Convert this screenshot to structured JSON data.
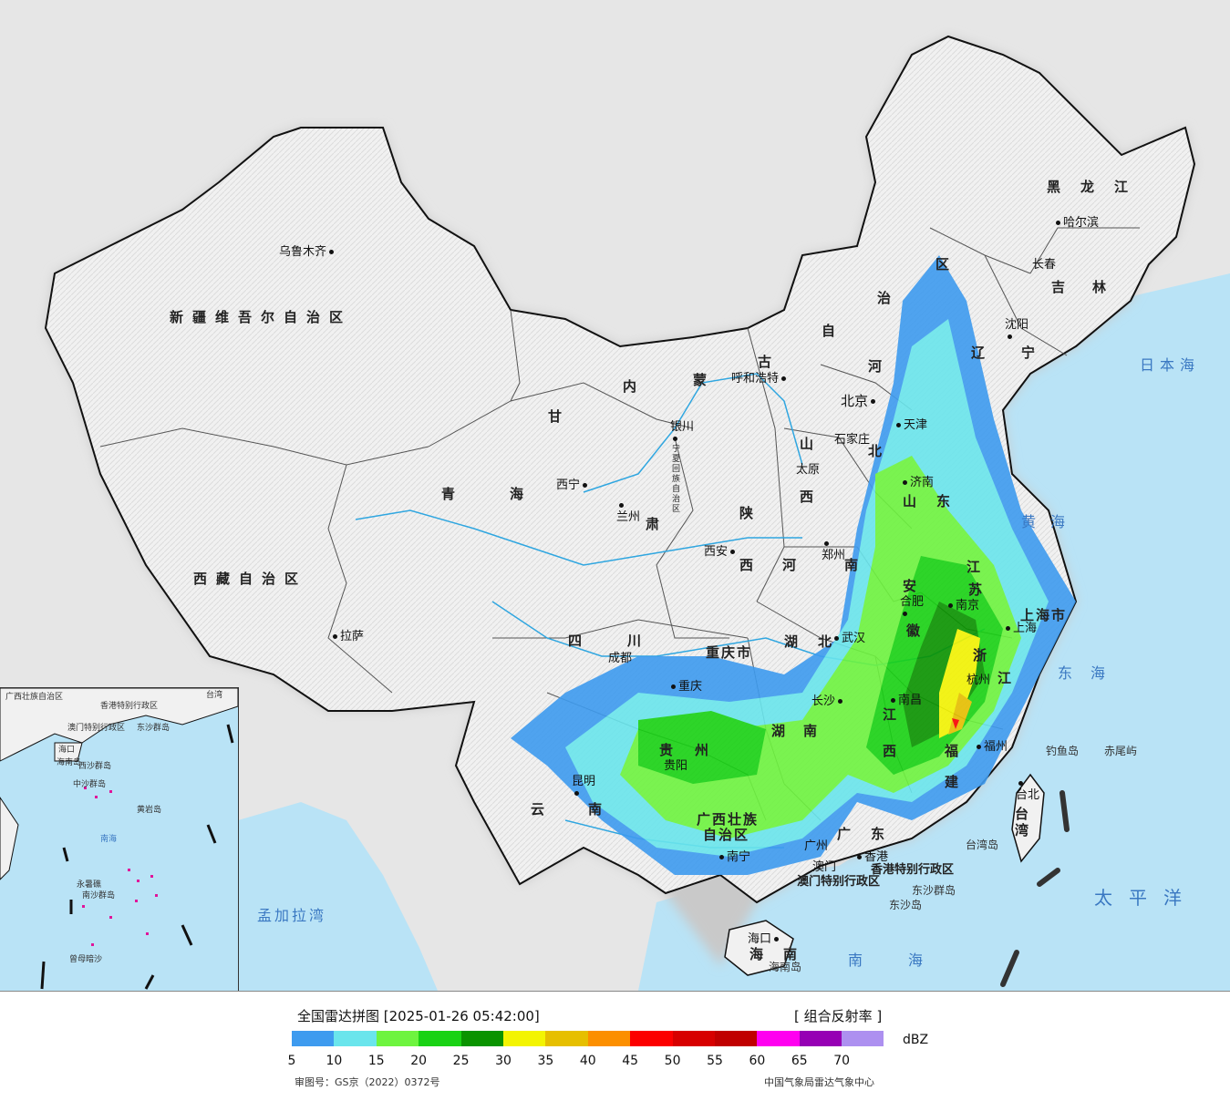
{
  "map": {
    "provinces": [
      {
        "name": "新疆维吾尔自治区"
      },
      {
        "name": "西藏自治区"
      },
      {
        "name": "青海"
      },
      {
        "name": "甘"
      },
      {
        "name": "肃"
      },
      {
        "name": "四川"
      },
      {
        "name": "云南"
      },
      {
        "name": "陕"
      },
      {
        "name": "西"
      },
      {
        "name": "内"
      },
      {
        "name": "蒙"
      },
      {
        "name": "古"
      },
      {
        "name": "自"
      },
      {
        "name": "治"
      },
      {
        "name": "区"
      },
      {
        "name": "黑龙江"
      },
      {
        "name": "吉林"
      },
      {
        "name": "辽宁"
      },
      {
        "name": "河"
      },
      {
        "name": "北"
      },
      {
        "name": "山"
      },
      {
        "name": "西"
      },
      {
        "name": "山"
      },
      {
        "name": "东"
      },
      {
        "name": "河"
      },
      {
        "name": "南"
      },
      {
        "name": "湖北"
      },
      {
        "name": "湖南"
      },
      {
        "name": "安"
      },
      {
        "name": "徽"
      },
      {
        "name": "江"
      },
      {
        "name": "苏"
      },
      {
        "name": "浙"
      },
      {
        "name": "江"
      },
      {
        "name": "江"
      },
      {
        "name": "西"
      },
      {
        "name": "福"
      },
      {
        "name": "建"
      },
      {
        "name": "贵州"
      },
      {
        "name": "广东"
      },
      {
        "name": "海南"
      },
      {
        "name": "广西壮族"
      },
      {
        "name": "自治区"
      },
      {
        "name": "重庆市"
      },
      {
        "name": "上海市"
      },
      {
        "name": "宁夏回族自治区"
      }
    ],
    "cities": [
      {
        "name": "乌鲁木齐"
      },
      {
        "name": "拉萨"
      },
      {
        "name": "西宁"
      },
      {
        "name": "兰州"
      },
      {
        "name": "银川"
      },
      {
        "name": "呼和浩特"
      },
      {
        "name": "西安"
      },
      {
        "name": "成都"
      },
      {
        "name": "重庆"
      },
      {
        "name": "昆明"
      },
      {
        "name": "贵阳"
      },
      {
        "name": "南宁"
      },
      {
        "name": "广州"
      },
      {
        "name": "海口"
      },
      {
        "name": "长沙"
      },
      {
        "name": "武汉"
      },
      {
        "name": "郑州"
      },
      {
        "name": "太原"
      },
      {
        "name": "石家庄"
      },
      {
        "name": "北京"
      },
      {
        "name": "天津"
      },
      {
        "name": "济南"
      },
      {
        "name": "合肥"
      },
      {
        "name": "南京"
      },
      {
        "name": "上海"
      },
      {
        "name": "杭州"
      },
      {
        "name": "南昌"
      },
      {
        "name": "福州"
      },
      {
        "name": "台北"
      },
      {
        "name": "沈阳"
      },
      {
        "name": "长春"
      },
      {
        "name": "哈尔滨"
      },
      {
        "name": "香港"
      },
      {
        "name": "澳门"
      }
    ],
    "special": [
      {
        "name": "香港特别行政区"
      },
      {
        "name": "澳门特别行政区"
      }
    ],
    "seas": [
      {
        "name": "日本海"
      },
      {
        "name": "黄海"
      },
      {
        "name": "东海"
      },
      {
        "name": "太平洋"
      },
      {
        "name": "南海"
      },
      {
        "name": "孟加拉湾"
      }
    ],
    "islands": [
      {
        "name": "钓鱼岛"
      },
      {
        "name": "赤尾屿"
      },
      {
        "name": "台湾岛"
      },
      {
        "name": "东沙群岛"
      },
      {
        "name": "东沙岛"
      },
      {
        "name": "海南岛"
      },
      {
        "name": "台湾"
      }
    ],
    "inset": {
      "labels": [
        "广西壮族自治区",
        "香港特别行政区",
        "澳门特别行政区",
        "海口",
        "海南岛",
        "东沙群岛",
        "西沙群岛",
        "中沙群岛",
        "黄岩岛",
        "南海",
        "南沙群岛",
        "曾母暗沙",
        "永暑礁",
        "台湾"
      ]
    }
  },
  "legend": {
    "title": "全国雷达拼图 [2025-01-26 05:42:00]",
    "product": "[ 组合反射率 ]",
    "unit": "dBZ",
    "colors": [
      "#3e9bef",
      "#6ae5ec",
      "#6ef43f",
      "#19d214",
      "#0a9300",
      "#f3f402",
      "#e6bf00",
      "#fc8f00",
      "#fc0000",
      "#d70000",
      "#c00000",
      "#ff00f0",
      "#9600b4",
      "#ad90f0"
    ],
    "ticks": [
      "5",
      "10",
      "15",
      "20",
      "25",
      "30",
      "35",
      "40",
      "45",
      "50",
      "55",
      "60",
      "65",
      "70"
    ],
    "approval": "审图号：GS京（2022）0372号",
    "agency": "中国气象局雷达气象中心"
  }
}
